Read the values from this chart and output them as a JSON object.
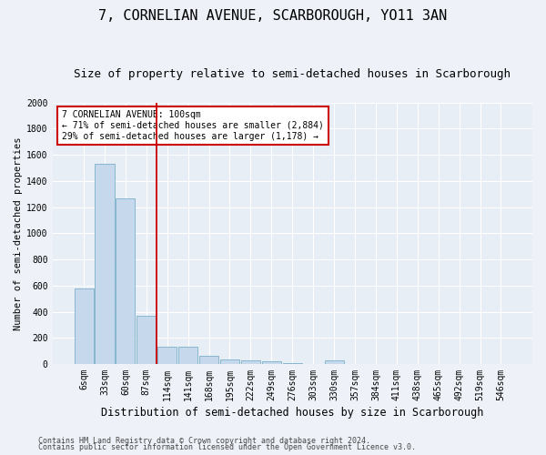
{
  "title": "7, CORNELIAN AVENUE, SCARBOROUGH, YO11 3AN",
  "subtitle": "Size of property relative to semi-detached houses in Scarborough",
  "xlabel": "Distribution of semi-detached houses by size in Scarborough",
  "ylabel": "Number of semi-detached properties",
  "footer1": "Contains HM Land Registry data © Crown copyright and database right 2024.",
  "footer2": "Contains public sector information licensed under the Open Government Licence v3.0.",
  "categories": [
    "6sqm",
    "33sqm",
    "60sqm",
    "87sqm",
    "114sqm",
    "141sqm",
    "168sqm",
    "195sqm",
    "222sqm",
    "249sqm",
    "276sqm",
    "303sqm",
    "330sqm",
    "357sqm",
    "384sqm",
    "411sqm",
    "438sqm",
    "465sqm",
    "492sqm",
    "519sqm",
    "546sqm"
  ],
  "values": [
    580,
    1530,
    1270,
    370,
    130,
    130,
    60,
    35,
    25,
    20,
    10,
    0,
    30,
    0,
    0,
    0,
    0,
    0,
    0,
    0,
    0
  ],
  "bar_color": "#c6d9ec",
  "bar_edge_color": "#7aafc8",
  "vline_x": 3.5,
  "vline_color": "#cc0000",
  "annotation_text": "7 CORNELIAN AVENUE: 100sqm\n← 71% of semi-detached houses are smaller (2,884)\n29% of semi-detached houses are larger (1,178) →",
  "annotation_box_color": "#cc0000",
  "ylim": [
    0,
    2000
  ],
  "yticks": [
    0,
    200,
    400,
    600,
    800,
    1000,
    1200,
    1400,
    1600,
    1800,
    2000
  ],
  "title_fontsize": 11,
  "subtitle_fontsize": 9,
  "ylabel_fontsize": 7.5,
  "xlabel_fontsize": 8.5,
  "tick_fontsize": 7,
  "bg_color": "#eef2f8",
  "plot_bg_color": "#e8eef6"
}
